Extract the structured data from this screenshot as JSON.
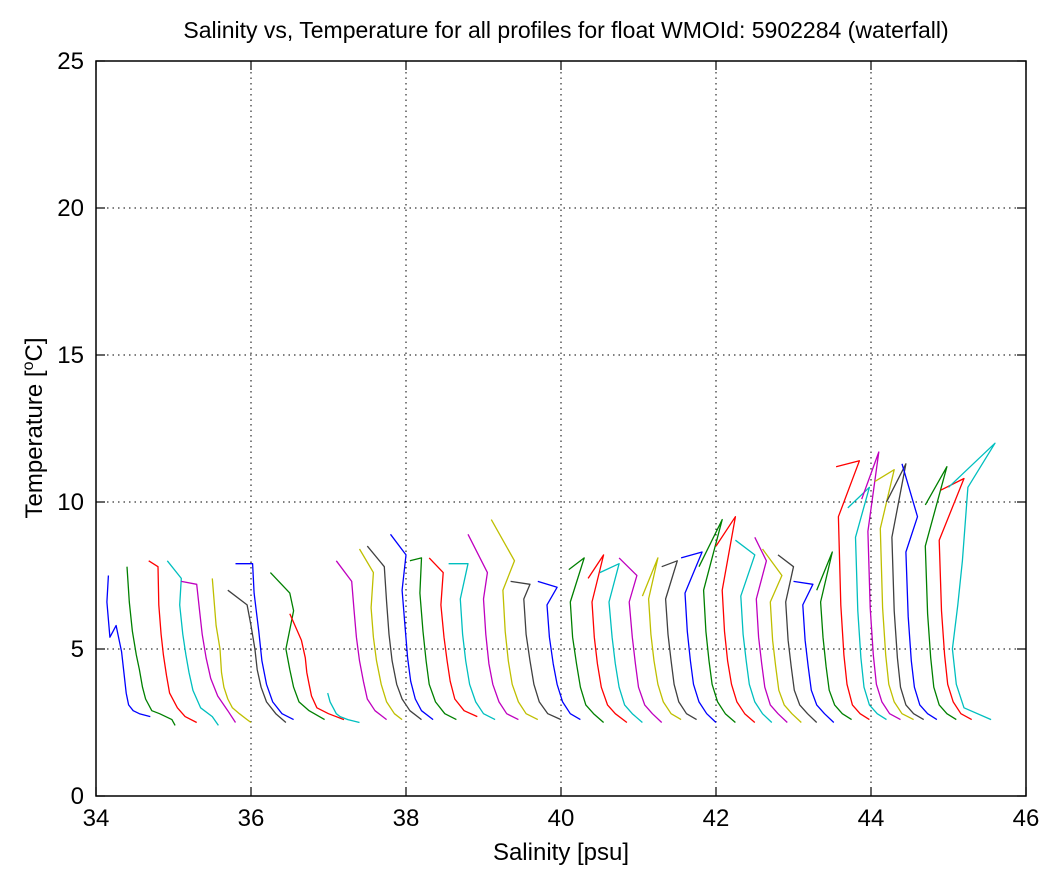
{
  "chart_data": {
    "type": "line",
    "title": "Salinity vs, Temperature for all profiles for float WMOId: 5902284 (waterfall)",
    "xlabel": "Salinity [psu]",
    "ylabel_main": "Temperature [",
    "ylabel_sup": "o",
    "ylabel_end": "C]",
    "xlim": [
      34,
      46
    ],
    "ylim": [
      0,
      25
    ],
    "xticks": [
      34,
      36,
      38,
      40,
      42,
      44,
      46
    ],
    "yticks": [
      0,
      5,
      10,
      15,
      20,
      25
    ],
    "grid": true,
    "legend": "none",
    "series_colors": [
      "#0000ff",
      "#008000",
      "#ff0000",
      "#00bfbf",
      "#bf00bf",
      "#bfbf00",
      "#404040"
    ],
    "series": [
      {
        "offset": 0.0,
        "x": [
          34.16,
          34.14,
          34.18,
          34.22,
          34.26,
          34.33,
          34.36,
          34.39,
          34.42,
          34.48,
          34.56,
          34.7
        ],
        "y": [
          7.5,
          6.6,
          5.4,
          5.6,
          5.8,
          4.9,
          4.2,
          3.5,
          3.1,
          2.9,
          2.8,
          2.7
        ]
      },
      {
        "offset": 0.2,
        "x": [
          34.4,
          34.43,
          34.47,
          34.52,
          34.56,
          34.6,
          34.64,
          34.72,
          34.82,
          34.98,
          35.02
        ],
        "y": [
          7.8,
          6.6,
          5.6,
          4.8,
          4.3,
          3.7,
          3.3,
          2.9,
          2.8,
          2.6,
          2.4
        ]
      },
      {
        "offset": 0.4,
        "x": [
          34.68,
          34.8,
          34.81,
          34.84,
          34.87,
          34.91,
          34.95,
          35.05,
          35.15,
          35.3
        ],
        "y": [
          8.0,
          7.8,
          6.5,
          5.5,
          4.8,
          4.1,
          3.5,
          3.0,
          2.7,
          2.5
        ]
      },
      {
        "offset": 0.6,
        "x": [
          34.92,
          35.1,
          35.08,
          35.12,
          35.16,
          35.2,
          35.25,
          35.35,
          35.5,
          35.58
        ],
        "y": [
          8.0,
          7.4,
          6.5,
          5.5,
          4.8,
          4.2,
          3.6,
          3.0,
          2.7,
          2.4
        ]
      },
      {
        "offset": 0.8,
        "x": [
          35.1,
          35.3,
          35.34,
          35.37,
          35.42,
          35.48,
          35.57,
          35.7,
          35.8
        ],
        "y": [
          7.3,
          7.2,
          6.2,
          5.5,
          4.7,
          4.0,
          3.4,
          2.9,
          2.5
        ]
      },
      {
        "offset": 1.0,
        "x": [
          35.5,
          35.55,
          35.6,
          35.62,
          35.65,
          35.7,
          35.76,
          35.85,
          35.95,
          36.0
        ],
        "y": [
          7.4,
          5.8,
          5.0,
          4.2,
          3.7,
          3.3,
          3.0,
          2.8,
          2.6,
          2.5
        ]
      },
      {
        "offset": 1.2,
        "x": [
          35.7,
          35.95,
          36.0,
          36.05,
          36.08,
          36.13,
          36.2,
          36.32,
          36.45
        ],
        "y": [
          7.0,
          6.5,
          5.8,
          5.0,
          4.3,
          3.7,
          3.2,
          2.8,
          2.5
        ]
      },
      {
        "offset": 1.4,
        "x": [
          35.8,
          36.02,
          36.04,
          36.1,
          36.14,
          36.2,
          36.28,
          36.4,
          36.55
        ],
        "y": [
          7.9,
          7.9,
          6.9,
          5.6,
          4.6,
          3.8,
          3.2,
          2.8,
          2.6
        ]
      },
      {
        "offset": 1.6,
        "x": [
          36.25,
          36.5,
          36.55,
          36.45,
          36.5,
          36.55,
          36.62,
          36.75,
          36.95
        ],
        "y": [
          7.6,
          6.9,
          6.3,
          5.0,
          4.3,
          3.7,
          3.2,
          2.9,
          2.6
        ]
      },
      {
        "offset": 1.8,
        "x": [
          36.5,
          36.65,
          36.7,
          36.72,
          36.75,
          36.78,
          36.85,
          37.0,
          37.2
        ],
        "y": [
          6.2,
          5.3,
          4.7,
          4.2,
          3.8,
          3.4,
          3.0,
          2.8,
          2.6
        ]
      },
      {
        "offset": 2.0,
        "x": [
          36.99,
          37.02,
          37.06,
          37.1,
          37.15,
          37.25,
          37.4
        ],
        "y": [
          3.5,
          3.2,
          3.0,
          2.8,
          2.7,
          2.6,
          2.5
        ]
      },
      {
        "offset": 2.2,
        "x": [
          37.1,
          37.3,
          37.33,
          37.36,
          37.4,
          37.45,
          37.5,
          37.6,
          37.75
        ],
        "y": [
          8.0,
          7.3,
          6.3,
          5.4,
          4.6,
          3.9,
          3.3,
          2.9,
          2.6
        ]
      },
      {
        "offset": 2.4,
        "x": [
          37.4,
          37.58,
          37.55,
          37.58,
          37.62,
          37.68,
          37.75,
          37.85,
          37.95
        ],
        "y": [
          8.4,
          7.6,
          6.4,
          5.4,
          4.6,
          3.8,
          3.2,
          2.8,
          2.6
        ]
      },
      {
        "offset": 2.6,
        "x": [
          37.5,
          37.72,
          37.75,
          37.78,
          37.82,
          37.88,
          37.95,
          38.05,
          38.2
        ],
        "y": [
          8.5,
          7.8,
          6.6,
          5.5,
          4.6,
          3.8,
          3.3,
          2.9,
          2.6
        ]
      },
      {
        "offset": 2.8,
        "x": [
          37.8,
          38.0,
          37.95,
          37.99,
          38.02,
          38.06,
          38.12,
          38.2,
          38.35
        ],
        "y": [
          8.9,
          8.2,
          7.0,
          5.7,
          4.7,
          3.9,
          3.3,
          2.9,
          2.6
        ]
      },
      {
        "offset": 3.0,
        "x": [
          38.05,
          38.2,
          38.18,
          38.22,
          38.26,
          38.3,
          38.38,
          38.5,
          38.65
        ],
        "y": [
          8.0,
          8.1,
          6.9,
          5.6,
          4.6,
          3.8,
          3.2,
          2.8,
          2.6
        ]
      },
      {
        "offset": 3.2,
        "x": [
          38.3,
          38.48,
          38.45,
          38.49,
          38.53,
          38.57,
          38.63,
          38.75,
          38.92
        ],
        "y": [
          8.1,
          7.6,
          6.5,
          5.4,
          4.6,
          3.9,
          3.3,
          2.9,
          2.7
        ]
      },
      {
        "offset": 3.4,
        "x": [
          38.55,
          38.8,
          38.7,
          38.73,
          38.77,
          38.82,
          38.9,
          39.0,
          39.15
        ],
        "y": [
          7.9,
          7.9,
          6.7,
          5.5,
          4.6,
          3.8,
          3.2,
          2.8,
          2.6
        ]
      },
      {
        "offset": 3.6,
        "x": [
          38.8,
          39.05,
          39.0,
          39.03,
          39.07,
          39.12,
          39.2,
          39.3,
          39.45
        ],
        "y": [
          8.9,
          7.6,
          6.7,
          5.5,
          4.5,
          3.8,
          3.2,
          2.8,
          2.6
        ]
      },
      {
        "offset": 3.8,
        "x": [
          39.1,
          39.4,
          39.25,
          39.28,
          39.32,
          39.37,
          39.45,
          39.55,
          39.7
        ],
        "y": [
          9.4,
          8.0,
          7.0,
          5.6,
          4.6,
          3.8,
          3.2,
          2.8,
          2.6
        ]
      },
      {
        "offset": 4.0,
        "x": [
          39.35,
          39.6,
          39.52,
          39.55,
          39.6,
          39.65,
          39.72,
          39.83,
          40.0
        ],
        "y": [
          7.3,
          7.2,
          6.7,
          5.5,
          4.6,
          3.8,
          3.2,
          2.8,
          2.6
        ]
      },
      {
        "offset": 4.2,
        "x": [
          39.7,
          39.95,
          39.82,
          39.85,
          39.9,
          39.95,
          40.02,
          40.12,
          40.25
        ],
        "y": [
          7.3,
          7.1,
          6.5,
          5.4,
          4.5,
          3.8,
          3.2,
          2.8,
          2.6
        ]
      },
      {
        "offset": 4.4,
        "x": [
          40.1,
          40.3,
          40.12,
          40.15,
          40.2,
          40.25,
          40.32,
          40.42,
          40.55
        ],
        "y": [
          7.7,
          8.1,
          6.6,
          5.4,
          4.5,
          3.7,
          3.1,
          2.8,
          2.5
        ]
      },
      {
        "offset": 4.6,
        "x": [
          40.35,
          40.55,
          40.4,
          40.43,
          40.47,
          40.52,
          40.6,
          40.7,
          40.85
        ],
        "y": [
          7.4,
          8.2,
          6.6,
          5.4,
          4.5,
          3.7,
          3.1,
          2.8,
          2.5
        ]
      },
      {
        "offset": 4.8,
        "x": [
          40.5,
          40.75,
          40.62,
          40.66,
          40.7,
          40.75,
          40.82,
          40.92,
          41.05
        ],
        "y": [
          7.6,
          7.9,
          6.6,
          5.4,
          4.5,
          3.7,
          3.1,
          2.8,
          2.5
        ]
      },
      {
        "offset": 5.0,
        "x": [
          40.75,
          40.98,
          40.88,
          40.92,
          40.96,
          41.0,
          41.08,
          41.18,
          41.3
        ],
        "y": [
          8.1,
          7.5,
          6.6,
          5.4,
          4.5,
          3.7,
          3.1,
          2.8,
          2.5
        ]
      },
      {
        "offset": 5.2,
        "x": [
          41.05,
          41.25,
          41.13,
          41.16,
          41.2,
          41.25,
          41.32,
          41.42,
          41.55
        ],
        "y": [
          6.8,
          8.1,
          6.7,
          5.5,
          4.6,
          3.8,
          3.2,
          2.8,
          2.6
        ]
      },
      {
        "offset": 5.4,
        "x": [
          41.3,
          41.5,
          41.35,
          41.38,
          41.42,
          41.46,
          41.52,
          41.62,
          41.75
        ],
        "y": [
          7.8,
          8.0,
          6.7,
          5.5,
          4.6,
          3.8,
          3.2,
          2.8,
          2.6
        ]
      },
      {
        "offset": 5.6,
        "x": [
          41.55,
          41.82,
          41.6,
          41.63,
          41.67,
          41.71,
          41.78,
          41.88,
          42.0
        ],
        "y": [
          8.1,
          8.3,
          6.9,
          5.6,
          4.6,
          3.8,
          3.2,
          2.8,
          2.5
        ]
      },
      {
        "offset": 5.8,
        "x": [
          41.78,
          42.08,
          41.84,
          41.87,
          41.91,
          41.95,
          42.02,
          42.12,
          42.25
        ],
        "y": [
          7.8,
          9.4,
          7.0,
          5.6,
          4.6,
          3.8,
          3.2,
          2.8,
          2.5
        ]
      },
      {
        "offset": 6.0,
        "x": [
          42.0,
          42.25,
          42.08,
          42.11,
          42.15,
          42.2,
          42.27,
          42.37,
          42.5
        ],
        "y": [
          8.5,
          9.5,
          7.0,
          5.6,
          4.6,
          3.8,
          3.2,
          2.8,
          2.5
        ]
      },
      {
        "offset": 6.2,
        "x": [
          42.25,
          42.5,
          42.32,
          42.35,
          42.39,
          42.43,
          42.5,
          42.6,
          42.72
        ],
        "y": [
          8.7,
          8.2,
          6.8,
          5.5,
          4.6,
          3.8,
          3.2,
          2.8,
          2.5
        ]
      },
      {
        "offset": 6.4,
        "x": [
          42.5,
          42.65,
          42.52,
          42.55,
          42.59,
          42.63,
          42.7,
          42.8,
          42.92
        ],
        "y": [
          8.8,
          8.0,
          6.7,
          5.4,
          4.5,
          3.7,
          3.1,
          2.8,
          2.5
        ]
      },
      {
        "offset": 6.6,
        "x": [
          42.6,
          42.85,
          42.7,
          42.73,
          42.77,
          42.81,
          42.88,
          42.98,
          43.1
        ],
        "y": [
          8.4,
          7.5,
          6.6,
          5.3,
          4.4,
          3.6,
          3.1,
          2.8,
          2.5
        ]
      },
      {
        "offset": 6.8,
        "x": [
          42.8,
          43.0,
          42.9,
          42.93,
          42.97,
          43.01,
          43.08,
          43.18,
          43.3
        ],
        "y": [
          8.2,
          7.8,
          6.6,
          5.3,
          4.4,
          3.6,
          3.1,
          2.8,
          2.5
        ]
      },
      {
        "offset": 7.0,
        "x": [
          43.0,
          43.25,
          43.12,
          43.15,
          43.19,
          43.23,
          43.3,
          43.4,
          43.52
        ],
        "y": [
          7.3,
          7.2,
          6.5,
          5.3,
          4.4,
          3.6,
          3.1,
          2.8,
          2.5
        ]
      },
      {
        "offset": 7.2,
        "x": [
          43.3,
          43.5,
          43.35,
          43.38,
          43.42,
          43.46,
          43.53,
          43.63,
          43.75
        ],
        "y": [
          7.0,
          8.3,
          6.6,
          5.4,
          4.4,
          3.6,
          3.1,
          2.8,
          2.6
        ]
      },
      {
        "offset": 7.4,
        "x": [
          43.55,
          43.85,
          43.58,
          43.61,
          43.65,
          43.69,
          43.76,
          43.86,
          43.98
        ],
        "y": [
          11.2,
          11.4,
          9.5,
          6.5,
          4.8,
          3.8,
          3.1,
          2.8,
          2.6
        ]
      },
      {
        "offset": 7.6,
        "x": [
          43.7,
          43.98,
          43.8,
          43.83,
          43.87,
          43.91,
          43.98,
          44.08,
          44.2
        ],
        "y": [
          9.8,
          10.5,
          8.8,
          6.3,
          4.7,
          3.7,
          3.1,
          2.8,
          2.6
        ]
      },
      {
        "offset": 7.8,
        "x": [
          43.88,
          44.1,
          43.96,
          43.99,
          44.03,
          44.07,
          44.14,
          44.24,
          44.38
        ],
        "y": [
          10.1,
          11.7,
          9.0,
          6.4,
          4.8,
          3.8,
          3.2,
          2.8,
          2.6
        ]
      },
      {
        "offset": 8.0,
        "x": [
          44.05,
          44.3,
          44.12,
          44.15,
          44.19,
          44.23,
          44.3,
          44.4,
          44.55
        ],
        "y": [
          10.7,
          11.1,
          9.1,
          6.4,
          4.8,
          3.8,
          3.2,
          2.8,
          2.6
        ]
      },
      {
        "offset": 8.2,
        "x": [
          44.2,
          44.45,
          44.27,
          44.3,
          44.34,
          44.38,
          44.45,
          44.55,
          44.68
        ],
        "y": [
          10.0,
          11.3,
          8.8,
          6.3,
          4.7,
          3.7,
          3.1,
          2.8,
          2.6
        ]
      },
      {
        "offset": 8.4,
        "x": [
          44.4,
          44.6,
          44.45,
          44.48,
          44.52,
          44.56,
          44.63,
          44.73,
          44.85
        ],
        "y": [
          11.3,
          9.5,
          8.3,
          6.1,
          4.6,
          3.7,
          3.1,
          2.8,
          2.6
        ]
      },
      {
        "offset": 8.6,
        "x": [
          44.7,
          44.98,
          44.7,
          44.73,
          44.77,
          44.81,
          44.88,
          44.98,
          45.1
        ],
        "y": [
          9.9,
          11.2,
          8.5,
          6.2,
          4.7,
          3.7,
          3.1,
          2.8,
          2.6
        ]
      },
      {
        "offset": 8.8,
        "x": [
          44.9,
          45.2,
          44.88,
          44.91,
          44.95,
          44.99,
          45.06,
          45.16,
          45.3
        ],
        "y": [
          10.4,
          10.8,
          8.7,
          6.3,
          4.8,
          3.8,
          3.2,
          2.8,
          2.6
        ]
      },
      {
        "offset": 9.0,
        "x": [
          45.0,
          45.6,
          45.25,
          45.18,
          45.12,
          45.05,
          45.1,
          45.2,
          45.55
        ],
        "y": [
          10.5,
          12.0,
          10.5,
          8.0,
          6.5,
          5.0,
          3.8,
          3.0,
          2.6
        ]
      }
    ]
  }
}
